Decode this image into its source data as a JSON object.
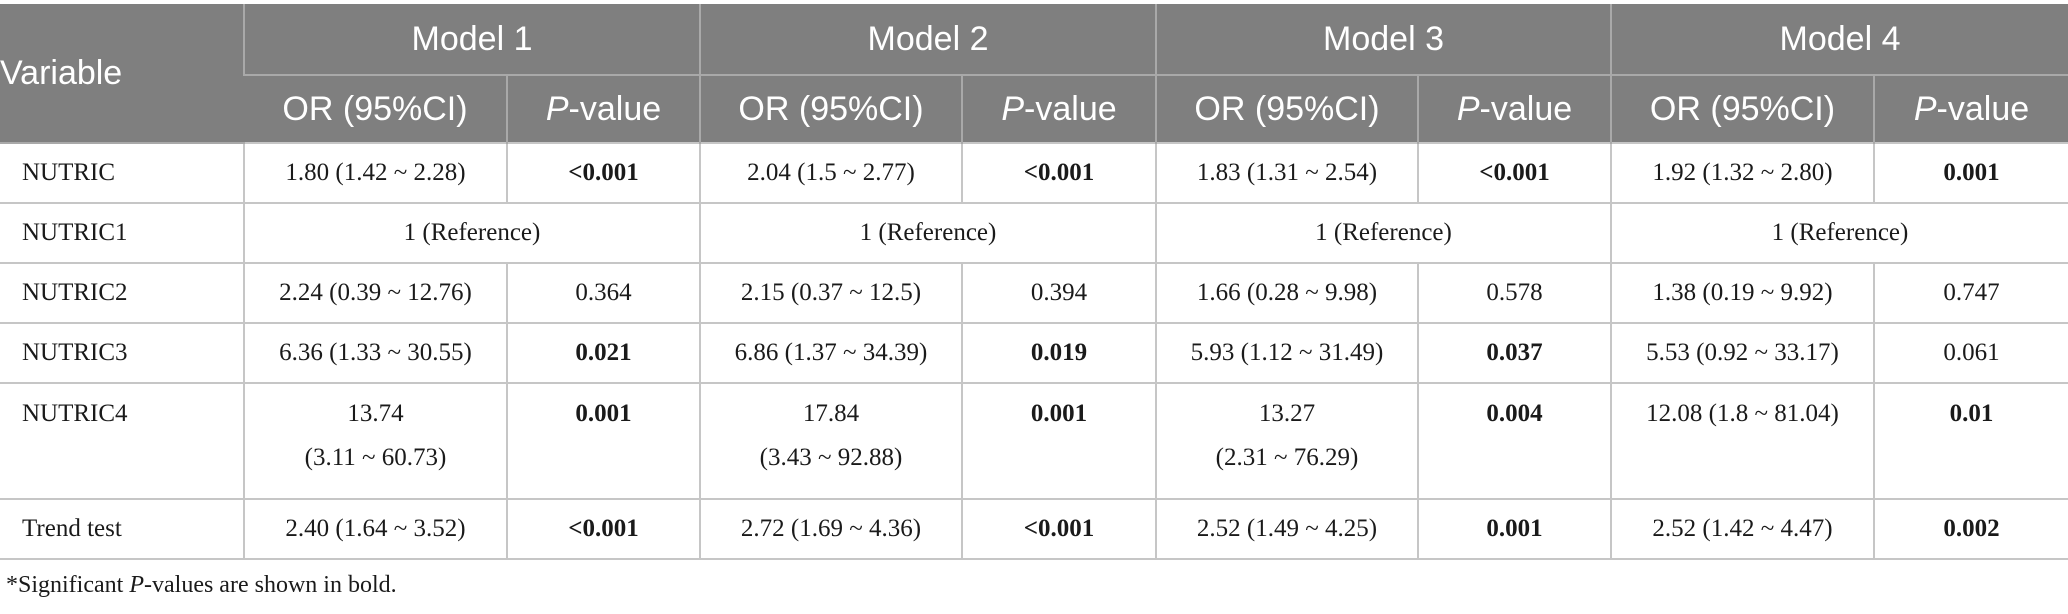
{
  "header": {
    "variable": "Variable",
    "models": [
      "Model 1",
      "Model 2",
      "Model 3",
      "Model 4"
    ],
    "or_label": "OR (95%CI)",
    "p_italic": "P",
    "p_rest": "-value"
  },
  "rows": [
    {
      "label": "NUTRIC",
      "cells": [
        {
          "or": "1.80 (1.42 ~ 2.28)",
          "p": "<0.001",
          "bold": true
        },
        {
          "or": "2.04 (1.5 ~ 2.77)",
          "p": "<0.001",
          "bold": true
        },
        {
          "or": "1.83 (1.31 ~ 2.54)",
          "p": "<0.001",
          "bold": true
        },
        {
          "or": "1.92 (1.32 ~ 2.80)",
          "p": "0.001",
          "bold": true
        }
      ]
    },
    {
      "label": "NUTRIC1",
      "reference": "1 (Reference)"
    },
    {
      "label": "NUTRIC2",
      "cells": [
        {
          "or": "2.24 (0.39 ~ 12.76)",
          "p": "0.364",
          "bold": false
        },
        {
          "or": "2.15 (0.37 ~ 12.5)",
          "p": "0.394",
          "bold": false
        },
        {
          "or": "1.66 (0.28 ~ 9.98)",
          "p": "0.578",
          "bold": false
        },
        {
          "or": "1.38 (0.19 ~ 9.92)",
          "p": "0.747",
          "bold": false
        }
      ]
    },
    {
      "label": "NUTRIC3",
      "cells": [
        {
          "or": "6.36 (1.33 ~ 30.55)",
          "p": "0.021",
          "bold": true
        },
        {
          "or": "6.86 (1.37 ~ 34.39)",
          "p": "0.019",
          "bold": true
        },
        {
          "or": "5.93 (1.12 ~ 31.49)",
          "p": "0.037",
          "bold": true
        },
        {
          "or": "5.53 (0.92 ~ 33.17)",
          "p": "0.061",
          "bold": false
        }
      ]
    },
    {
      "label": "NUTRIC4",
      "cells": [
        {
          "or1": "13.74",
          "or2": "(3.11 ~ 60.73)",
          "p": "0.001",
          "bold": true
        },
        {
          "or1": "17.84",
          "or2": "(3.43 ~ 92.88)",
          "p": "0.001",
          "bold": true
        },
        {
          "or1": "13.27",
          "or2": "(2.31 ~ 76.29)",
          "p": "0.004",
          "bold": true
        },
        {
          "or1": "12.08 (1.8 ~ 81.04)",
          "or2": "",
          "p": "0.01",
          "bold": true
        }
      ]
    },
    {
      "label": "Trend test",
      "cells": [
        {
          "or": "2.40 (1.64 ~ 3.52)",
          "p": "<0.001",
          "bold": true
        },
        {
          "or": "2.72 (1.69 ~ 4.36)",
          "p": "<0.001",
          "bold": true
        },
        {
          "or": "2.52 (1.49 ~ 4.25)",
          "p": "0.001",
          "bold": true
        },
        {
          "or": "2.52 (1.42 ~ 4.47)",
          "p": "0.002",
          "bold": true
        }
      ]
    }
  ],
  "footnote": {
    "pre": "*Significant ",
    "italic": "P",
    "post": "-values are shown in bold."
  }
}
